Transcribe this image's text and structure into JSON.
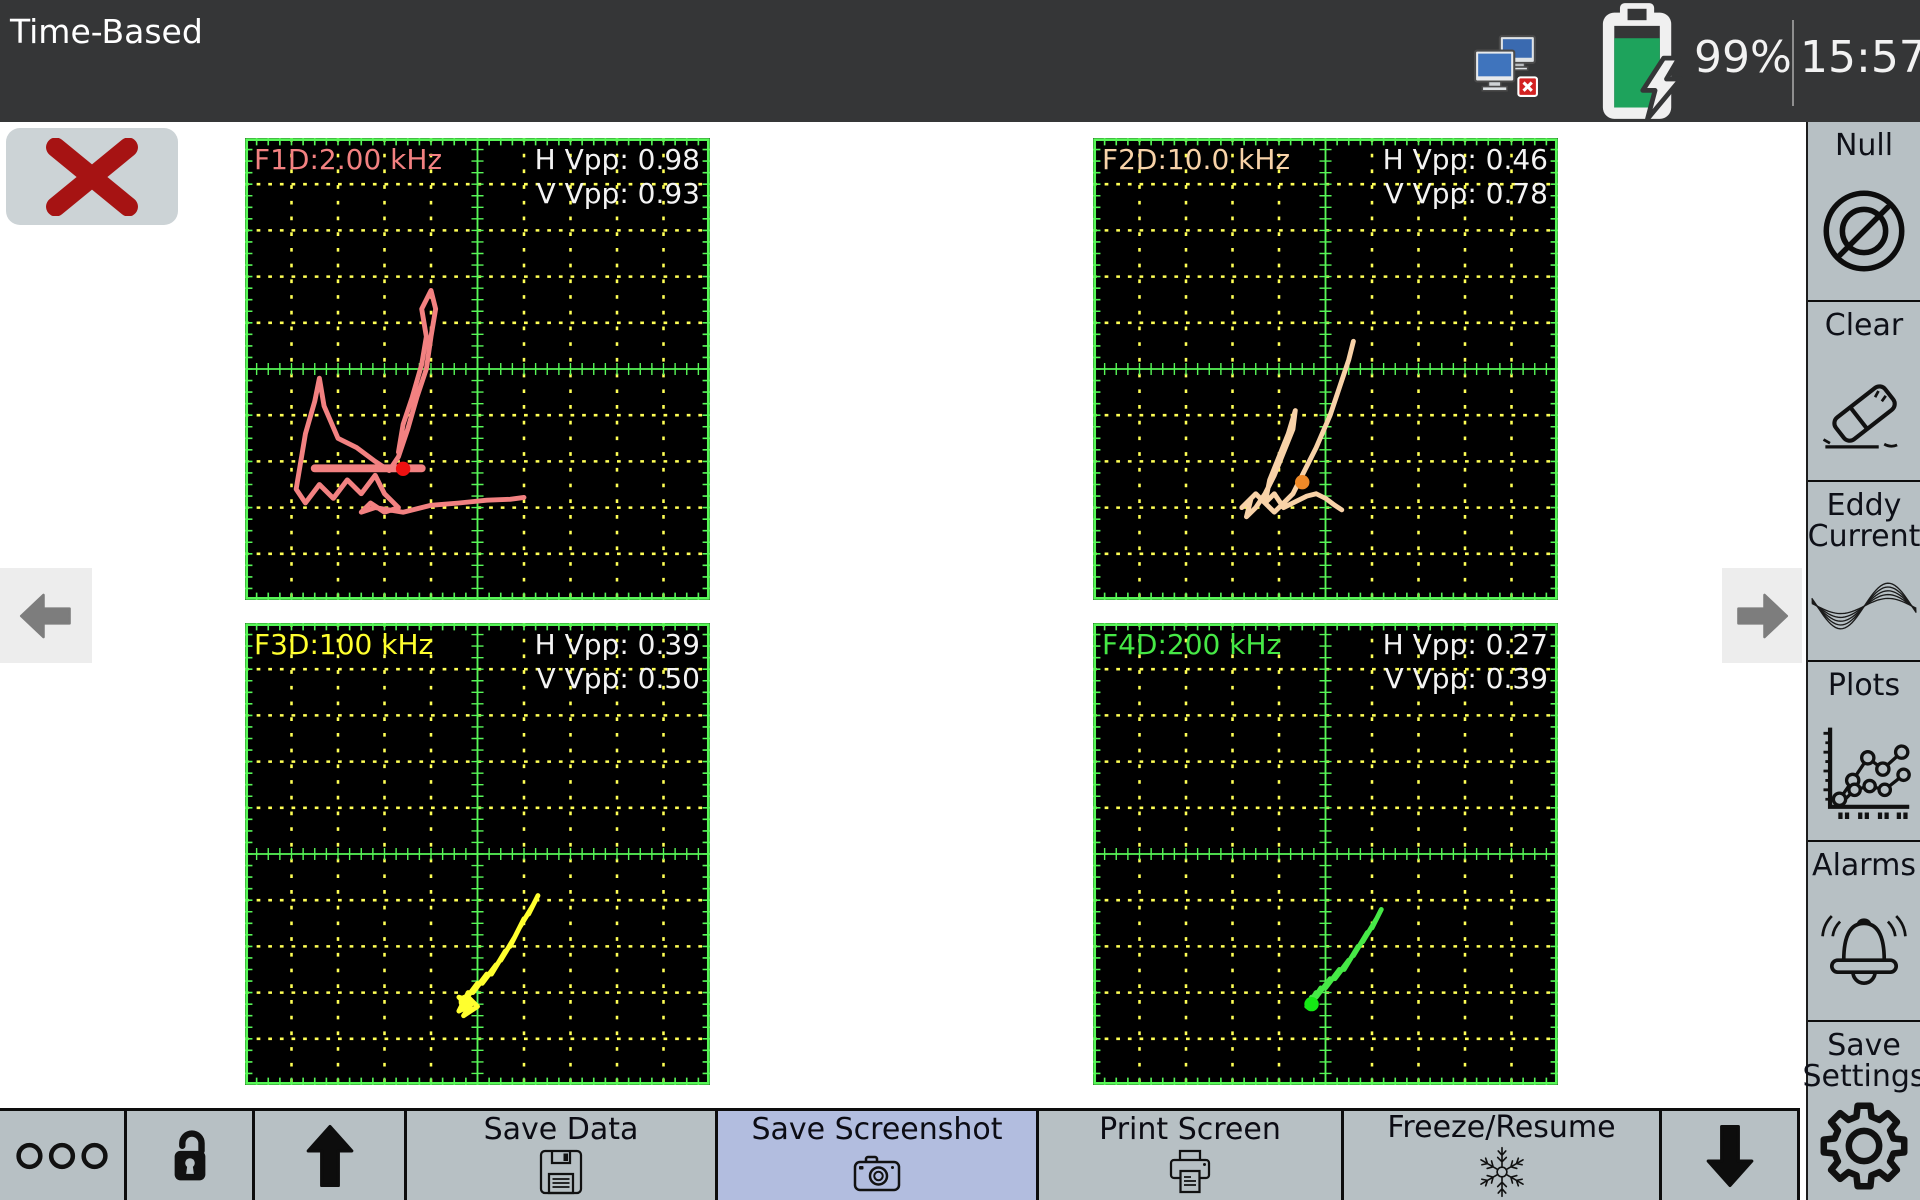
{
  "header": {
    "title": "Time-Based",
    "battery_percent": "99%",
    "time": "15:57",
    "network_icon": "computers-disconnected-icon",
    "battery_icon": "battery-charging-icon"
  },
  "colors": {
    "topbar": "#353637",
    "panel": "#b7c0c4",
    "active_button": "#b2bddf",
    "grid_green": "#57f657",
    "grid_yellow": "#ffff55",
    "plot_bg": "#000000"
  },
  "plots": [
    {
      "label": "F1D:2.00 kHz",
      "color": "#f28181",
      "h_vpp": "H Vpp: 0.98",
      "v_vpp": "V Vpp: 0.93",
      "dot_color": "#ee1111",
      "dot": [
        34,
        71.6
      ],
      "arm": [
        [
          15,
          71.5
        ],
        [
          38,
          71.5
        ]
      ],
      "trace": [
        [
          33,
          68
        ],
        [
          34,
          62
        ],
        [
          36,
          56
        ],
        [
          38,
          49
        ],
        [
          39,
          43
        ],
        [
          38,
          37
        ],
        [
          40,
          33
        ],
        [
          41,
          37
        ],
        [
          40,
          43
        ],
        [
          39,
          50
        ],
        [
          37,
          56
        ],
        [
          35,
          63
        ],
        [
          33,
          69
        ],
        [
          31,
          72
        ],
        [
          28,
          70
        ],
        [
          24,
          67
        ],
        [
          20,
          65
        ],
        [
          17,
          58
        ],
        [
          16,
          52
        ],
        [
          15,
          57
        ],
        [
          13,
          64
        ],
        [
          12,
          70
        ],
        [
          11,
          76
        ],
        [
          13,
          79
        ],
        [
          16,
          75
        ],
        [
          19,
          78
        ],
        [
          22,
          74
        ],
        [
          25,
          77
        ],
        [
          28,
          73
        ],
        [
          30,
          77
        ],
        [
          33,
          80
        ],
        [
          30,
          81
        ],
        [
          27,
          79
        ],
        [
          25,
          81
        ],
        [
          28,
          80
        ],
        [
          34,
          81
        ],
        [
          40,
          79.5
        ],
        [
          46,
          79
        ],
        [
          52,
          78.4
        ],
        [
          57,
          78.2
        ],
        [
          60,
          77.8
        ]
      ]
    },
    {
      "label": "F2D:10.0 kHz",
      "color": "#f8d2a8",
      "h_vpp": "H Vpp: 0.46",
      "v_vpp": "V Vpp: 0.78",
      "dot_color": "#f08a28",
      "dot": [
        45,
        74.5
      ],
      "trace": [
        [
          56,
          44
        ],
        [
          55,
          48
        ],
        [
          53,
          54
        ],
        [
          51,
          60
        ],
        [
          48,
          67
        ],
        [
          45,
          73
        ],
        [
          43,
          77
        ],
        [
          41,
          79
        ],
        [
          39,
          81
        ],
        [
          37,
          79
        ],
        [
          38,
          74
        ],
        [
          40,
          69
        ],
        [
          42,
          64
        ],
        [
          43.5,
          59
        ],
        [
          43,
          63
        ],
        [
          41,
          68
        ],
        [
          39,
          73
        ],
        [
          37,
          77
        ],
        [
          35,
          80
        ],
        [
          33,
          82
        ],
        [
          34,
          78
        ],
        [
          32,
          80
        ],
        [
          35,
          77
        ],
        [
          37,
          79
        ],
        [
          39,
          77
        ],
        [
          41,
          80
        ],
        [
          43,
          79
        ],
        [
          46,
          77.5
        ],
        [
          48,
          77
        ],
        [
          50,
          78
        ],
        [
          52,
          79.5
        ],
        [
          53.5,
          80.5
        ]
      ]
    },
    {
      "label": "F3D:100 kHz",
      "color": "#ffff2e",
      "h_vpp": "H Vpp: 0.39",
      "v_vpp": "V Vpp: 0.50",
      "dot_color": "#ffff2e",
      "dot": [
        47.5,
        82
      ],
      "trace": [
        [
          63,
          59
        ],
        [
          61,
          63
        ],
        [
          62,
          61
        ],
        [
          59,
          66
        ],
        [
          60,
          64
        ],
        [
          57,
          70
        ],
        [
          58,
          68
        ],
        [
          55,
          73
        ],
        [
          56,
          71
        ],
        [
          53,
          76
        ],
        [
          54,
          74
        ],
        [
          51,
          78
        ],
        [
          52,
          76
        ],
        [
          49,
          80
        ],
        [
          50,
          78
        ],
        [
          47,
          82
        ],
        [
          48,
          80
        ],
        [
          46,
          84
        ],
        [
          48,
          83
        ],
        [
          46,
          81
        ],
        [
          49,
          82
        ],
        [
          47,
          85
        ],
        [
          50,
          83
        ],
        [
          48,
          81
        ]
      ]
    },
    {
      "label": "F4D:200 kHz",
      "color": "#46e846",
      "h_vpp": "H Vpp: 0.27",
      "v_vpp": "V Vpp: 0.39",
      "dot_color": "#15e815",
      "dot": [
        47,
        82.5
      ],
      "trace": [
        [
          62,
          62
        ],
        [
          60,
          66
        ],
        [
          61,
          64
        ],
        [
          58,
          69
        ],
        [
          59,
          67
        ],
        [
          56,
          72
        ],
        [
          57,
          70
        ],
        [
          54,
          75
        ],
        [
          55,
          73
        ],
        [
          52,
          77
        ],
        [
          53,
          75
        ],
        [
          50,
          79
        ],
        [
          51,
          77
        ],
        [
          48,
          81
        ],
        [
          49,
          79
        ],
        [
          47,
          82
        ],
        [
          48,
          80
        ],
        [
          46,
          83
        ],
        [
          47,
          81
        ]
      ]
    }
  ],
  "sidebar": {
    "items": [
      {
        "label": "Null",
        "icon": "null-icon"
      },
      {
        "label": "Clear",
        "icon": "eraser-icon"
      },
      {
        "label": "Eddy Current",
        "icon": "sine-waves-icon"
      },
      {
        "label": "Plots",
        "icon": "line-chart-icon"
      },
      {
        "label": "Alarms",
        "icon": "bell-icon"
      },
      {
        "label": "Save Settings",
        "icon": "gear-icon"
      }
    ]
  },
  "toolbar": {
    "buttons": [
      {
        "name": "menu-dots",
        "icon": "three-circles-icon"
      },
      {
        "name": "lock",
        "icon": "unlocked-padlock-icon"
      },
      {
        "name": "scroll-up",
        "icon": "arrow-up-icon"
      },
      {
        "label": "Save Data",
        "icon": "floppy-disk-icon"
      },
      {
        "label": "Save Screenshot",
        "icon": "camera-icon",
        "active": true
      },
      {
        "label": "Print Screen",
        "icon": "printer-icon"
      },
      {
        "label": "Freeze/Resume",
        "icon": "snowflake-icon"
      },
      {
        "name": "scroll-down",
        "icon": "arrow-down-icon"
      }
    ]
  }
}
